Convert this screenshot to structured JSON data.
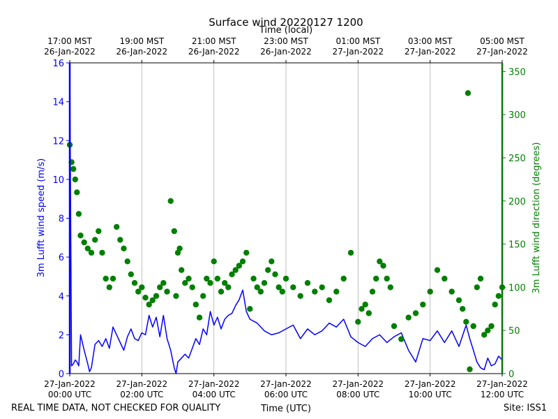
{
  "chart_data": {
    "type": "line",
    "title": "Surface wind 20220127 1200",
    "top_xlabel": "Time (local)",
    "xlabel": "Time (UTC)",
    "ylabel_left": "3m Lufft wind speed (m/s)",
    "ylabel_right": "3m Lufft wind direction (degrees)",
    "footer_left": "REAL TIME DATA, NOT CHECKED FOR QUALITY",
    "footer_right": "Site: ISS1",
    "x_range_hours_utc": [
      0,
      12
    ],
    "ylim_left": [
      0,
      16
    ],
    "ylim_right": [
      0,
      360
    ],
    "grid": "vertical-only",
    "left_ticks": [
      0,
      2,
      4,
      6,
      8,
      10,
      12,
      14,
      16
    ],
    "right_ticks": [
      0,
      50,
      100,
      150,
      200,
      250,
      300,
      350
    ],
    "bottom_ticks": [
      {
        "hour": 0,
        "date": "27-Jan-2022",
        "time": "00:00 UTC"
      },
      {
        "hour": 2,
        "date": "27-Jan-2022",
        "time": "02:00 UTC"
      },
      {
        "hour": 4,
        "date": "27-Jan-2022",
        "time": "04:00 UTC"
      },
      {
        "hour": 6,
        "date": "27-Jan-2022",
        "time": "06:00 UTC"
      },
      {
        "hour": 8,
        "date": "27-Jan-2022",
        "time": "08:00 UTC"
      },
      {
        "hour": 10,
        "date": "27-Jan-2022",
        "time": "10:00 UTC"
      },
      {
        "hour": 12,
        "date": "27-Jan-2022",
        "time": "12:00 UTC"
      }
    ],
    "top_ticks": [
      {
        "hour": 0,
        "time": "17:00 MST",
        "date": "26-Jan-2022"
      },
      {
        "hour": 2,
        "time": "19:00 MST",
        "date": "26-Jan-2022"
      },
      {
        "hour": 4,
        "time": "21:00 MST",
        "date": "26-Jan-2022"
      },
      {
        "hour": 6,
        "time": "23:00 MST",
        "date": "26-Jan-2022"
      },
      {
        "hour": 8,
        "time": "01:00 MST",
        "date": "27-Jan-2022"
      },
      {
        "hour": 10,
        "time": "03:00 MST",
        "date": "27-Jan-2022"
      },
      {
        "hour": 12,
        "time": "05:00 MST",
        "date": "27-Jan-2022"
      }
    ],
    "series": [
      {
        "name": "3m Lufft wind speed (m/s)",
        "axis": "left",
        "style": "line",
        "color": "#0000ff",
        "x": [
          0,
          0.05,
          0.1,
          0.15,
          0.2,
          0.25,
          0.3,
          0.4,
          0.5,
          0.55,
          0.6,
          0.7,
          0.8,
          0.9,
          1.0,
          1.1,
          1.2,
          1.3,
          1.4,
          1.5,
          1.6,
          1.7,
          1.8,
          1.9,
          2.0,
          2.1,
          2.2,
          2.3,
          2.4,
          2.5,
          2.6,
          2.7,
          2.8,
          2.9,
          2.95,
          3.0,
          3.1,
          3.2,
          3.3,
          3.4,
          3.5,
          3.6,
          3.7,
          3.8,
          3.9,
          4.0,
          4.1,
          4.2,
          4.3,
          4.4,
          4.5,
          4.6,
          4.7,
          4.8,
          4.9,
          5.0,
          5.2,
          5.4,
          5.6,
          5.8,
          6.0,
          6.2,
          6.4,
          6.6,
          6.8,
          7.0,
          7.2,
          7.4,
          7.6,
          7.8,
          8.0,
          8.2,
          8.4,
          8.6,
          8.8,
          9.0,
          9.2,
          9.4,
          9.6,
          9.8,
          10.0,
          10.2,
          10.4,
          10.6,
          10.8,
          11.0,
          11.1,
          11.2,
          11.3,
          11.4,
          11.5,
          11.6,
          11.7,
          11.8,
          11.9,
          12.0
        ],
        "values": [
          16,
          0.4,
          0.5,
          0.7,
          0.6,
          0.4,
          2.0,
          1.2,
          0.5,
          0.1,
          0.3,
          1.5,
          1.7,
          1.4,
          1.8,
          1.3,
          2.4,
          2.0,
          1.6,
          1.2,
          1.9,
          2.3,
          1.8,
          1.7,
          2.1,
          2.0,
          3.0,
          2.4,
          2.9,
          1.9,
          3.0,
          1.8,
          1.2,
          0.3,
          0,
          0.6,
          0.8,
          1.0,
          0.8,
          1.3,
          1.8,
          1.5,
          2.3,
          2.0,
          3.2,
          2.5,
          2.9,
          2.3,
          2.8,
          3.0,
          3.1,
          3.5,
          3.8,
          4.3,
          3.2,
          2.8,
          2.6,
          2.2,
          2.0,
          2.1,
          2.3,
          2.5,
          1.8,
          2.3,
          2.0,
          2.2,
          2.6,
          2.4,
          2.8,
          1.9,
          1.6,
          1.4,
          1.8,
          2.0,
          1.6,
          1.9,
          2.1,
          1.2,
          0.6,
          1.8,
          1.7,
          2.2,
          1.6,
          2.2,
          1.4,
          2.5,
          1.8,
          1.2,
          0.6,
          0.3,
          0.2,
          0.8,
          0.4,
          0.5,
          0.9,
          0.7
        ]
      },
      {
        "name": "3m Lufft wind direction (degrees)",
        "axis": "right",
        "style": "markers",
        "color": "#007f00",
        "x": [
          0,
          0.05,
          0.1,
          0.15,
          0.2,
          0.25,
          0.3,
          0.4,
          0.5,
          0.6,
          0.7,
          0.8,
          0.9,
          1.0,
          1.1,
          1.2,
          1.3,
          1.4,
          1.5,
          1.6,
          1.7,
          1.8,
          1.9,
          2.0,
          2.1,
          2.2,
          2.3,
          2.4,
          2.5,
          2.6,
          2.7,
          2.8,
          2.9,
          2.95,
          3.0,
          3.05,
          3.1,
          3.2,
          3.3,
          3.4,
          3.5,
          3.6,
          3.7,
          3.8,
          3.9,
          4.0,
          4.1,
          4.2,
          4.3,
          4.4,
          4.5,
          4.6,
          4.7,
          4.8,
          4.9,
          5.0,
          5.1,
          5.2,
          5.3,
          5.4,
          5.5,
          5.6,
          5.7,
          5.8,
          5.9,
          6.0,
          6.2,
          6.4,
          6.6,
          6.8,
          7.0,
          7.2,
          7.4,
          7.6,
          7.8,
          8.0,
          8.1,
          8.2,
          8.3,
          8.4,
          8.5,
          8.6,
          8.7,
          8.8,
          8.9,
          9.0,
          9.2,
          9.4,
          9.6,
          9.8,
          10.0,
          10.2,
          10.4,
          10.6,
          10.8,
          10.9,
          11.0,
          11.05,
          11.1,
          11.2,
          11.3,
          11.4,
          11.5,
          11.6,
          11.7,
          11.8,
          11.9,
          12.0
        ],
        "values": [
          265,
          245,
          237,
          225,
          210,
          185,
          160,
          152,
          145,
          140,
          155,
          165,
          140,
          110,
          100,
          110,
          170,
          155,
          145,
          130,
          115,
          105,
          95,
          100,
          88,
          80,
          85,
          90,
          100,
          105,
          95,
          200,
          165,
          90,
          140,
          145,
          120,
          105,
          110,
          100,
          80,
          65,
          90,
          110,
          105,
          130,
          110,
          95,
          105,
          100,
          115,
          120,
          125,
          130,
          140,
          75,
          110,
          100,
          95,
          105,
          120,
          130,
          115,
          100,
          95,
          110,
          100,
          90,
          105,
          95,
          100,
          85,
          95,
          110,
          140,
          60,
          75,
          80,
          70,
          95,
          110,
          130,
          125,
          110,
          100,
          55,
          40,
          65,
          70,
          80,
          95,
          120,
          110,
          95,
          85,
          75,
          60,
          325,
          5,
          55,
          100,
          110,
          45,
          50,
          55,
          80,
          90,
          100
        ]
      }
    ]
  }
}
